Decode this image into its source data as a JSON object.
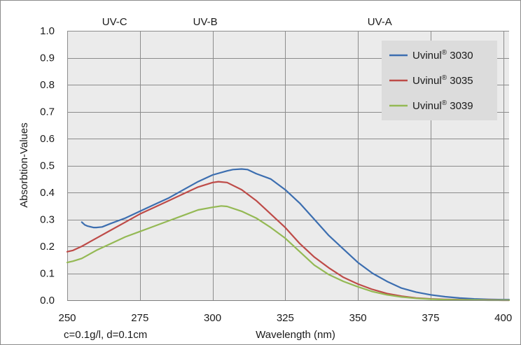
{
  "chart_data": {
    "type": "line",
    "title": "",
    "xlabel": "Wavelength (nm)",
    "ylabel": "Absorbtion-Values",
    "xlim": [
      250,
      402
    ],
    "ylim": [
      0,
      1
    ],
    "xticks": [
      250,
      275,
      300,
      325,
      350,
      375,
      400
    ],
    "yticks": [
      "0.0",
      "0.1",
      "0.2",
      "0.3",
      "0.4",
      "0.5",
      "0.6",
      "0.7",
      "0.8",
      "0.9",
      "1.0"
    ],
    "grid": true,
    "legend_position": "top-right",
    "annotation": "c=0.1g/l, d=0.1cm",
    "bands": [
      {
        "label": "UV-C",
        "from": 250,
        "to": 280
      },
      {
        "label": "UV-B",
        "from": 280,
        "to": 315
      },
      {
        "label": "UV-A",
        "from": 315,
        "to": 400
      }
    ],
    "series": [
      {
        "name": "Uvinul",
        "name_suffix": " 3030",
        "color": "#3c6eb0",
        "x": [
          255,
          256,
          257,
          259,
          260,
          262,
          265,
          270,
          275,
          280,
          285,
          290,
          295,
          300,
          305,
          307,
          310,
          312,
          315,
          320,
          325,
          330,
          335,
          340,
          345,
          350,
          355,
          360,
          365,
          370,
          375,
          380,
          385,
          390,
          395,
          400,
          402
        ],
        "y": [
          0.29,
          0.28,
          0.275,
          0.27,
          0.27,
          0.272,
          0.285,
          0.305,
          0.33,
          0.355,
          0.38,
          0.41,
          0.44,
          0.465,
          0.48,
          0.485,
          0.487,
          0.485,
          0.47,
          0.45,
          0.41,
          0.36,
          0.3,
          0.24,
          0.19,
          0.14,
          0.1,
          0.07,
          0.045,
          0.03,
          0.02,
          0.013,
          0.008,
          0.005,
          0.003,
          0.002,
          0.002
        ]
      },
      {
        "name": "Uvinul",
        "name_suffix": " 3035",
        "color": "#be4b48",
        "x": [
          250,
          252,
          255,
          260,
          265,
          270,
          275,
          280,
          285,
          290,
          295,
          300,
          302,
          305,
          310,
          315,
          320,
          325,
          330,
          335,
          340,
          345,
          350,
          355,
          360,
          365,
          370,
          375,
          380,
          385,
          390,
          395,
          400,
          402
        ],
        "y": [
          0.18,
          0.185,
          0.2,
          0.23,
          0.26,
          0.29,
          0.32,
          0.345,
          0.37,
          0.395,
          0.42,
          0.437,
          0.44,
          0.437,
          0.41,
          0.37,
          0.32,
          0.27,
          0.21,
          0.16,
          0.12,
          0.085,
          0.06,
          0.04,
          0.025,
          0.015,
          0.008,
          0.005,
          0.003,
          0.002,
          0.001,
          0.001,
          0.0,
          0.0
        ]
      },
      {
        "name": "Uvinul",
        "name_suffix": " 3039",
        "color": "#94b954",
        "x": [
          250,
          252,
          255,
          260,
          265,
          270,
          275,
          280,
          285,
          290,
          295,
          300,
          303,
          305,
          310,
          315,
          320,
          325,
          330,
          335,
          340,
          345,
          350,
          355,
          360,
          365,
          370,
          375,
          380,
          385,
          390,
          395,
          400,
          402
        ],
        "y": [
          0.14,
          0.145,
          0.155,
          0.185,
          0.21,
          0.235,
          0.255,
          0.275,
          0.295,
          0.315,
          0.335,
          0.345,
          0.35,
          0.348,
          0.33,
          0.305,
          0.27,
          0.23,
          0.18,
          0.13,
          0.095,
          0.07,
          0.05,
          0.032,
          0.02,
          0.012,
          0.007,
          0.004,
          0.002,
          0.001,
          0.001,
          0.0,
          0.0,
          0.0
        ]
      }
    ]
  },
  "legend": {
    "registered_mark": "®"
  }
}
